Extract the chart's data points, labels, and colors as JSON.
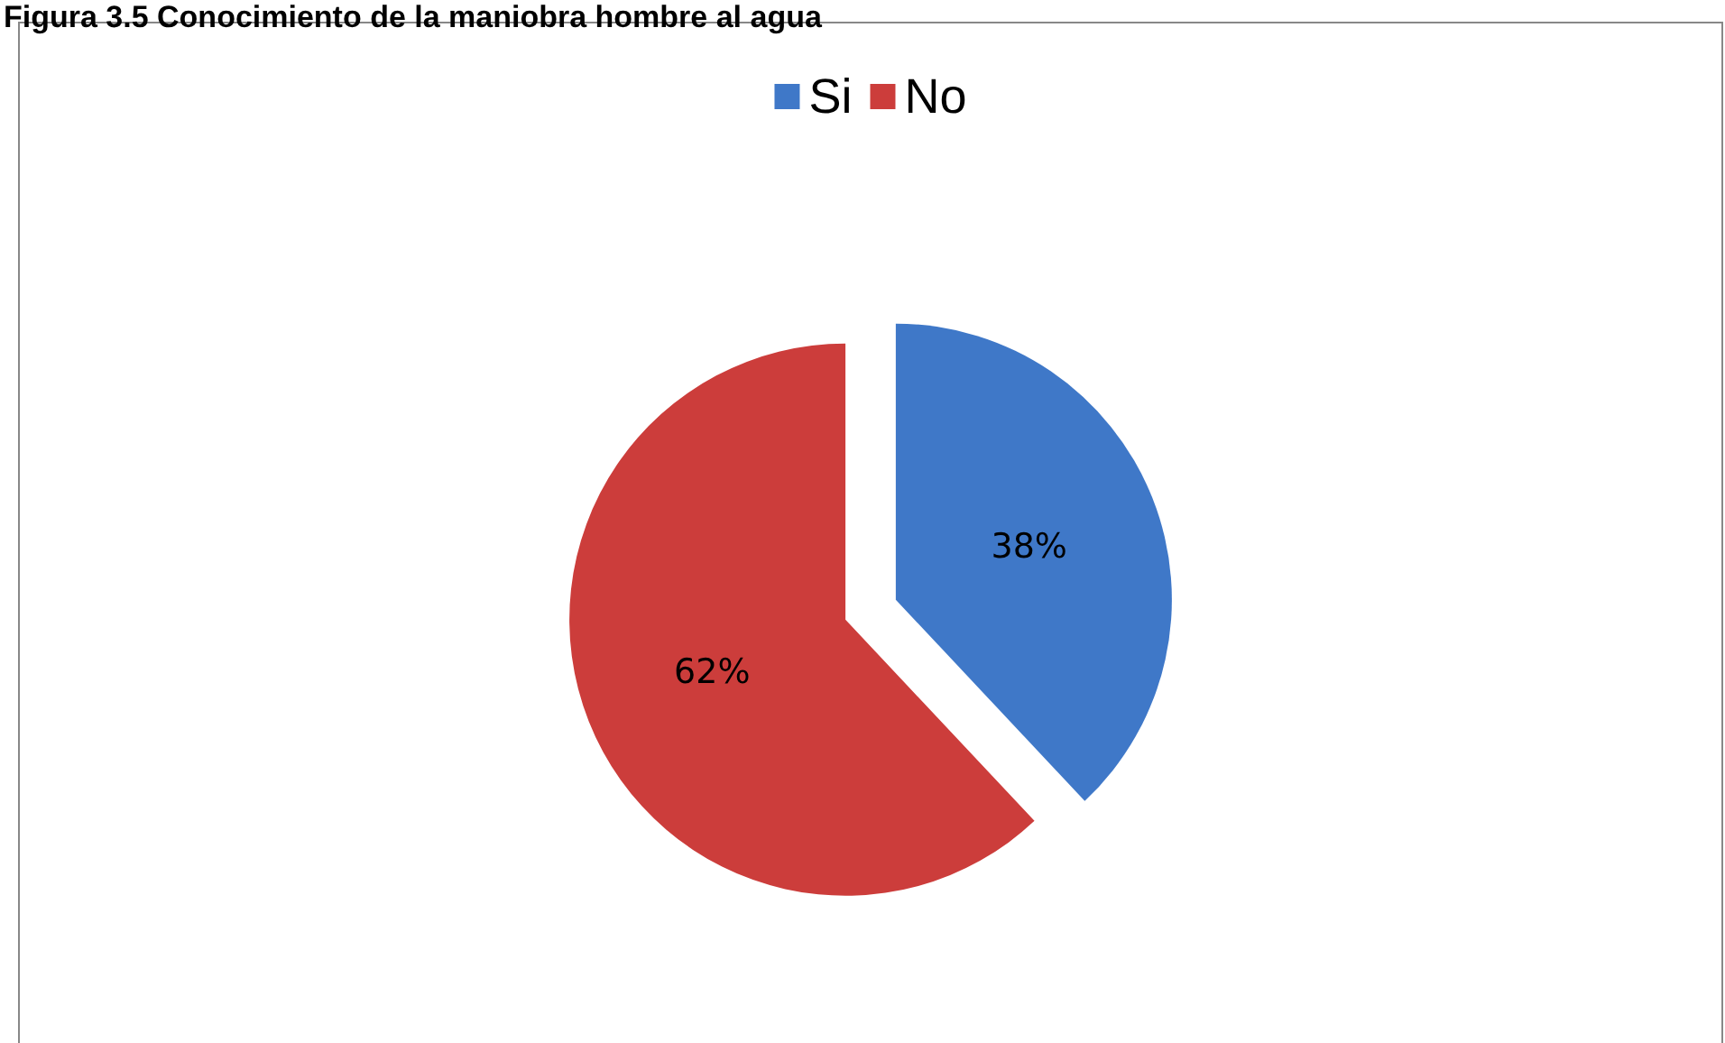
{
  "chart_data": {
    "type": "pie",
    "title": "Figura 3.5 Conocimiento de la maniobra hombre al agua",
    "categories": [
      "Si",
      "No"
    ],
    "values": [
      38,
      62
    ],
    "colors": [
      "#3f78c8",
      "#cc3d3b"
    ],
    "value_labels": [
      "38%",
      "62%"
    ],
    "legend": "top"
  }
}
